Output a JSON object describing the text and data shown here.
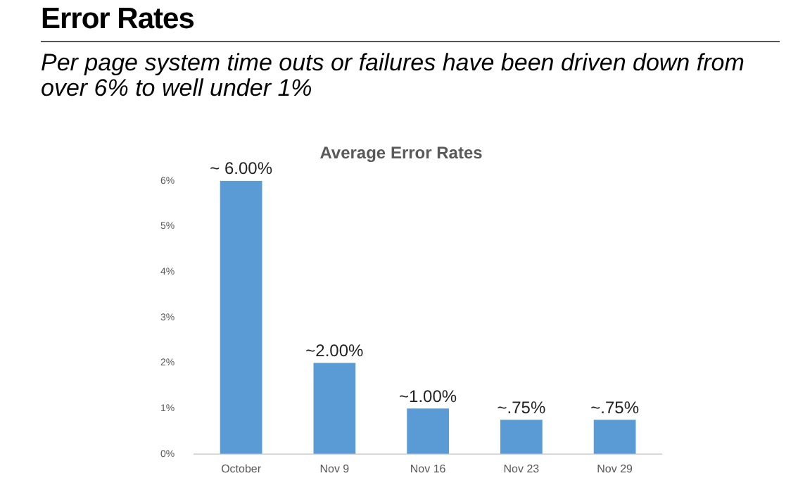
{
  "chart_data": {
    "type": "bar",
    "title": "Error Rates",
    "subtitle": "Per page system time outs or failures have been driven down from over 6% to well under 1%",
    "annotations": [
      "Average Error Rates"
    ],
    "categories": [
      "October",
      "Nov 9",
      "Nov 16",
      "Nov 23",
      "Nov 29"
    ],
    "values": [
      6,
      2,
      1,
      0.75,
      0.75
    ],
    "value_labels": [
      "~ 6.00%",
      "~2.00%",
      "~1.00%",
      "~.75%",
      "~.75%"
    ],
    "color": "#5b9bd5",
    "ylim": [
      0,
      6
    ],
    "yticks": [
      {
        "value": 0,
        "label": "0%"
      },
      {
        "value": 1,
        "label": "1%"
      },
      {
        "value": 2,
        "label": "2%"
      },
      {
        "value": 3,
        "label": "3%"
      },
      {
        "value": 4,
        "label": "4%"
      },
      {
        "value": 5,
        "label": "5%"
      },
      {
        "value": 6,
        "label": "6%"
      }
    ],
    "grid": false,
    "legend": false
  }
}
